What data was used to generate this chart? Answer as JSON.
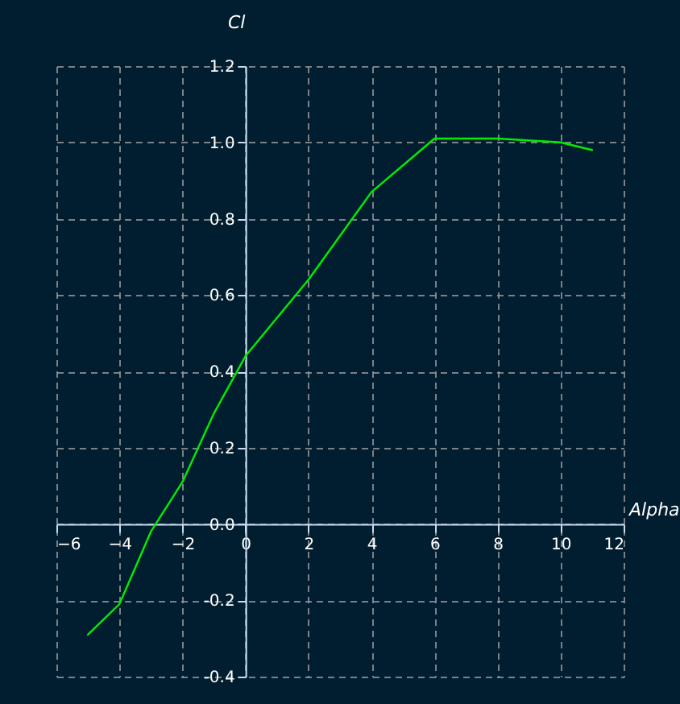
{
  "chart_data": {
    "type": "line",
    "xlabel": "Alpha",
    "ylabel": "Cl",
    "x": [
      -5,
      -4,
      -3,
      -2,
      -1,
      0,
      2,
      4,
      6,
      8,
      10,
      11
    ],
    "series": [
      {
        "color": "#00ee00",
        "values": [
          -0.29,
          -0.21,
          -0.02,
          0.11,
          0.29,
          0.44,
          0.64,
          0.87,
          1.01,
          1.01,
          1.0,
          0.98
        ]
      }
    ],
    "xlim": [
      -6,
      12
    ],
    "xticks": [
      -6,
      -4,
      -2,
      0,
      2,
      4,
      6,
      8,
      10,
      12
    ],
    "ylim": [
      -0.4,
      1.2
    ],
    "yticks": [
      {
        "value": -0.4,
        "label": "-0.4"
      },
      {
        "value": -0.2,
        "label": "-0.2"
      },
      {
        "value": 0,
        "label": "0.0"
      },
      {
        "value": 0.2,
        "label": "0.2"
      },
      {
        "value": 0.4,
        "label": "0.4"
      },
      {
        "value": 0.6,
        "label": "0.6"
      },
      {
        "value": 0.8,
        "label": "0.8"
      },
      {
        "value": 1.0,
        "label": "1.0"
      },
      {
        "value": 1.2,
        "label": "1.2"
      }
    ],
    "grid": true,
    "marker": "none",
    "line_style": "solid"
  }
}
